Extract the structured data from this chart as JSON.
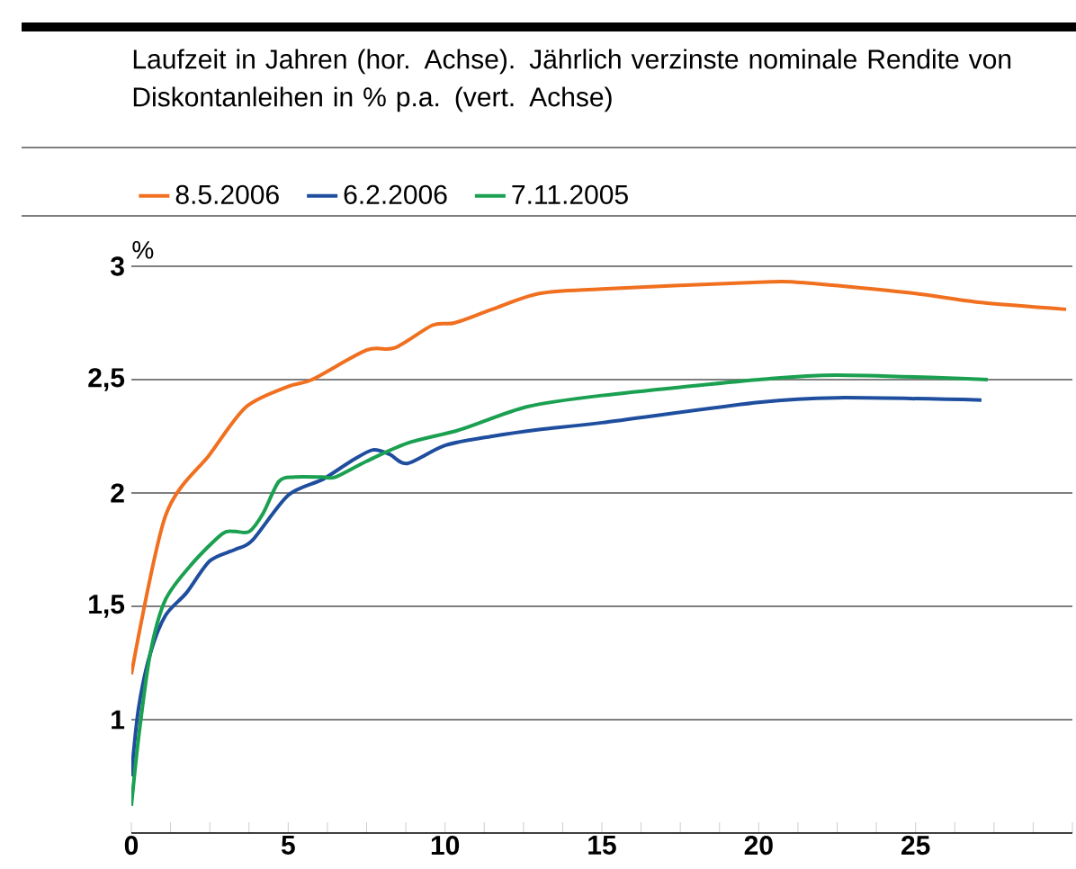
{
  "chart_data": {
    "type": "line",
    "title": "Laufzeit in Jahren (hor. Achse). Jährlich verzinste nominale Rendite von Diskontanleihen in % p.a. (vert. Achse)",
    "ylabel": "%",
    "xlim": [
      0,
      30
    ],
    "ylim": [
      0.5,
      3
    ],
    "xticks": [
      0,
      {
        "value": 1.25,
        "label": null
      },
      {
        "value": 2.5,
        "label": null
      },
      {
        "value": 3.75,
        "label": null
      },
      5,
      {
        "value": 6.25,
        "label": null
      },
      {
        "value": 7.5,
        "label": null
      },
      {
        "value": 8.75,
        "label": null
      },
      10,
      {
        "value": 11.25,
        "label": null
      },
      {
        "value": 12.5,
        "label": null
      },
      {
        "value": 13.75,
        "label": null
      },
      15,
      {
        "value": 16.25,
        "label": null
      },
      {
        "value": 17.5,
        "label": null
      },
      {
        "value": 18.75,
        "label": null
      },
      20,
      {
        "value": 21.25,
        "label": null
      },
      {
        "value": 22.5,
        "label": null
      },
      {
        "value": 23.75,
        "label": null
      },
      25,
      {
        "value": 26.25,
        "label": null
      },
      {
        "value": 27.5,
        "label": null
      },
      {
        "value": 28.75,
        "label": null
      },
      {
        "value": 30,
        "label": null
      }
    ],
    "yticks": [
      1,
      {
        "value": 1.5,
        "label": "1,5"
      },
      2,
      {
        "value": 2.5,
        "label": "2,5"
      },
      3
    ],
    "grid": "y",
    "legend": "top",
    "marker": "none",
    "line_style": "solid",
    "series": [
      {
        "name": "8.5.2006",
        "color": "#f07020",
        "x": [
          0,
          1.09,
          2.5,
          3.66,
          5,
          5.76,
          7.5,
          8.4,
          9.6,
          10.3,
          11.5,
          13,
          15,
          20,
          21.2,
          22.9,
          25,
          27.1,
          29.8
        ],
        "values": [
          1.2,
          1.9,
          2.17,
          2.38,
          2.47,
          2.5,
          2.63,
          2.64,
          2.74,
          2.75,
          2.81,
          2.88,
          2.9,
          2.93,
          2.93,
          2.91,
          2.88,
          2.84,
          2.81
        ]
      },
      {
        "name": "6.2.2006",
        "color": "#1f4e9e",
        "x": [
          0,
          0.23,
          0.6,
          1.09,
          1.76,
          2.5,
          3.3,
          3.85,
          5,
          6.1,
          7.0,
          7.7,
          8.24,
          8.8,
          10,
          11.5,
          13,
          15,
          20,
          22.5,
          27.1
        ],
        "values": [
          0.75,
          1.05,
          1.29,
          1.46,
          1.56,
          1.7,
          1.75,
          1.79,
          1.99,
          2.06,
          2.14,
          2.19,
          2.17,
          2.13,
          2.21,
          2.25,
          2.28,
          2.31,
          2.4,
          2.42,
          2.41
        ]
      },
      {
        "name": "7.11.2005",
        "color": "#1aa050",
        "x": [
          0,
          0.23,
          0.6,
          1.09,
          1.95,
          2.9,
          3.3,
          3.76,
          4.2,
          4.7,
          5.2,
          6.1,
          6.5,
          7.5,
          8.8,
          10.5,
          12.6,
          15,
          20,
          22.5,
          27.3
        ],
        "values": [
          0.62,
          0.92,
          1.29,
          1.53,
          1.69,
          1.82,
          1.83,
          1.83,
          1.91,
          2.05,
          2.07,
          2.07,
          2.07,
          2.14,
          2.22,
          2.28,
          2.38,
          2.43,
          2.5,
          2.52,
          2.5
        ]
      }
    ]
  }
}
